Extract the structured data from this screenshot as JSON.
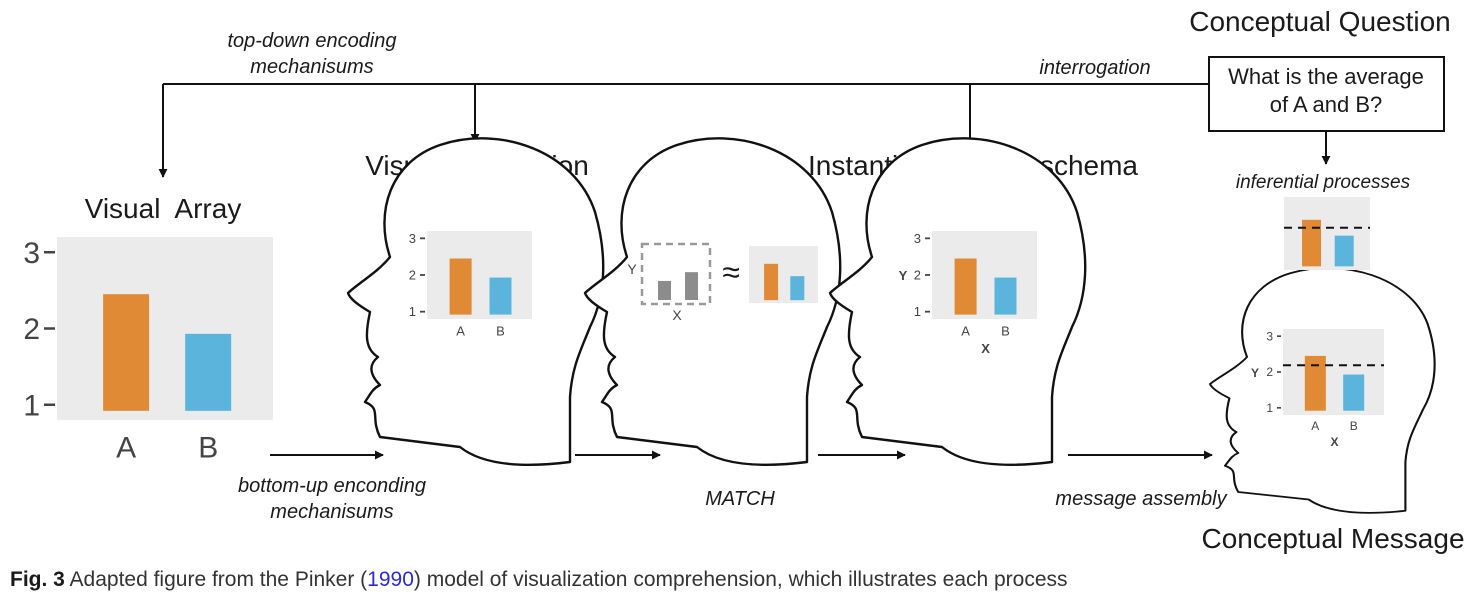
{
  "labels": {
    "top_down": [
      "top-down encoding",
      "mechanisums"
    ],
    "interrogation": "interrogation",
    "conceptual_question": "Conceptual Question",
    "question_text": [
      "What is the average",
      "of A and B?"
    ],
    "visual_array": "Visual  Array",
    "visual_description": "Visual Description",
    "instantiated_schema": "Instantiated graph schema",
    "inferential": "inferential processes",
    "bottom_up": [
      "bottom-up enconding",
      "mechanisums"
    ],
    "match": "MATCH",
    "message_assembly": "message assembly",
    "conceptual_message": "Conceptual Message",
    "approx": "≈",
    "axis_x": "X",
    "axis_y": "Y"
  },
  "chart_data": [
    {
      "type": "bar",
      "categories": [
        "A",
        "B"
      ],
      "values": [
        2.45,
        1.93
      ],
      "yticks": [
        1,
        2,
        3
      ],
      "ylim": [
        0.8,
        3.2
      ],
      "colors": [
        "#e08a35",
        "#5ab4dc"
      ],
      "background": "#ebebeb"
    }
  ],
  "caption": {
    "fig": "Fig. 3",
    "before": " Adapted figure from the Pinker (",
    "cite": "1990",
    "after": ") model of visualization comprehension, which illustrates each process"
  }
}
